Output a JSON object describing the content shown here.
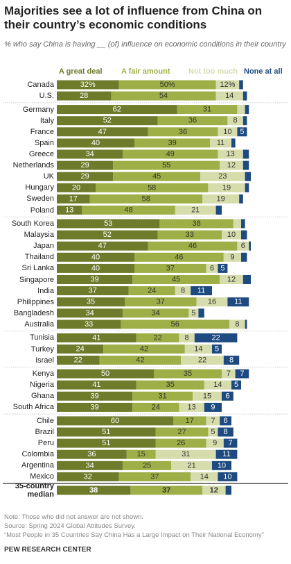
{
  "chart_data": {
    "type": "stacked-bar-horizontal",
    "title": "Majorities see a lot of influence from China on their country’s economic conditions",
    "subtitle": "% who say China is having __ (of) influence on economic conditions in their country",
    "categories": [
      "Canada",
      "U.S.",
      "Germany",
      "Italy",
      "France",
      "Spain",
      "Greece",
      "Netherlands",
      "UK",
      "Hungary",
      "Sweden",
      "Poland",
      "South Korea",
      "Malaysia",
      "Japan",
      "Thailand",
      "Sri Lanka",
      "Singapore",
      "India",
      "Philippines",
      "Bangladesh",
      "Australia",
      "Tunisia",
      "Turkey",
      "Israel",
      "Kenya",
      "Nigeria",
      "Ghana",
      "South Africa",
      "Chile",
      "Brazil",
      "Peru",
      "Colombia",
      "Argentina",
      "Mexico",
      "35-country median"
    ],
    "series": [
      {
        "name": "A great deal",
        "color": "#6e7b2b",
        "values": [
          32,
          28,
          62,
          52,
          47,
          40,
          34,
          29,
          29,
          20,
          17,
          13,
          53,
          52,
          47,
          40,
          40,
          39,
          37,
          35,
          34,
          33,
          41,
          24,
          22,
          50,
          41,
          39,
          39,
          60,
          51,
          51,
          36,
          34,
          32,
          38
        ],
        "value_labels": [
          "32%",
          "28",
          "62",
          "52",
          "47",
          "40",
          "34",
          "29",
          "29",
          "20",
          "17",
          "13",
          "53",
          "52",
          "47",
          "40",
          "40",
          "39",
          "37",
          "35",
          "34",
          "33",
          "41",
          "24",
          "22",
          "50",
          "41",
          "39",
          "39",
          "60",
          "51",
          "51",
          "36",
          "34",
          "32",
          "38"
        ]
      },
      {
        "name": "A fair amount",
        "color": "#9daf46",
        "values": [
          50,
          54,
          31,
          36,
          36,
          39,
          49,
          55,
          45,
          58,
          58,
          48,
          38,
          33,
          46,
          46,
          37,
          45,
          24,
          37,
          34,
          56,
          22,
          42,
          42,
          35,
          35,
          31,
          24,
          17,
          27,
          26,
          15,
          25,
          37,
          37
        ],
        "value_labels": [
          "50%",
          "54",
          "31",
          "36",
          "36",
          "39",
          "49",
          "55",
          "45",
          "58",
          "58",
          "48",
          "38",
          "33",
          "46",
          "46",
          "37",
          "45",
          "24",
          "37",
          "34",
          "56",
          "22",
          "42",
          "42",
          "35",
          "35",
          "31",
          "24",
          "17",
          "27",
          "26",
          "15",
          "25",
          "37",
          "37"
        ]
      },
      {
        "name": "Not too much",
        "color": "#d6dcab",
        "values": [
          12,
          14,
          4,
          8,
          10,
          11,
          13,
          12,
          23,
          19,
          19,
          21,
          4,
          10,
          6,
          9,
          6,
          12,
          8,
          16,
          5,
          8,
          8,
          14,
          22,
          7,
          14,
          15,
          13,
          7,
          5,
          9,
          31,
          21,
          14,
          12
        ],
        "value_labels": [
          "12%",
          "14",
          null,
          "8",
          "10",
          "11",
          "13",
          "12",
          "23",
          "19",
          "19",
          "21",
          null,
          "10",
          "6",
          "9",
          "6",
          "12",
          "8",
          "16",
          "5",
          "8",
          "8",
          "14",
          "22",
          "7",
          "14",
          "15",
          "13",
          "7",
          "5",
          "9",
          "31",
          "21",
          "14",
          "12"
        ]
      },
      {
        "name": "None at all",
        "color": "#1d4a80",
        "values": [
          2,
          2,
          2,
          2,
          5,
          2,
          3,
          3,
          3,
          2,
          2,
          3,
          2,
          3,
          1,
          3,
          5,
          4,
          11,
          11,
          3,
          1,
          22,
          5,
          8,
          7,
          5,
          6,
          9,
          6,
          8,
          7,
          11,
          10,
          10,
          3
        ],
        "value_labels": [
          null,
          null,
          null,
          null,
          "5",
          null,
          null,
          null,
          null,
          null,
          null,
          null,
          null,
          null,
          null,
          null,
          "5",
          null,
          "11",
          "11",
          null,
          null,
          "22",
          "5",
          "8",
          "7",
          "5",
          "6",
          "9",
          "6",
          "8",
          "7",
          "11",
          "10",
          "10",
          null
        ]
      }
    ],
    "notes": [
      "Note: Those who did not answer are not shown.",
      "Source: Spring 2024 Global Attitudes Survey.",
      "“Most People in 35 Countries Say China Has a Large Impact on Their National Economy”"
    ],
    "source": "PEW RESEARCH CENTER"
  }
}
